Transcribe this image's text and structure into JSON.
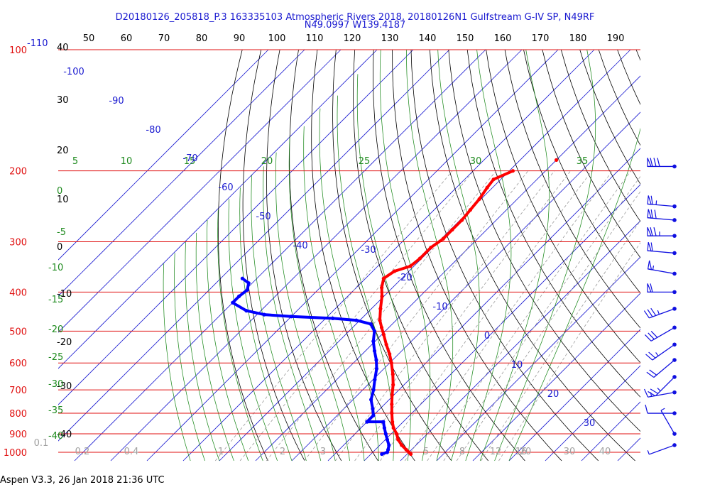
{
  "header": {
    "line1": "D20180126_205818_P.3 163335103 Atmospheric Rivers 2018, 20180126N1 Gulfstream G-IV SP, N49RF",
    "line2": "N49.0997 W139.4187"
  },
  "footer": {
    "text": "Aspen V3.3, 26 Jan 2018  21:36 UTC"
  },
  "colors": {
    "isobar": "#e01010",
    "isotherm": "#1a1ad0",
    "dry_adiabat": "#000000",
    "moist_adiabat": "#1e8a1e",
    "mixing_ratio": "#9a9a9a",
    "temperature": "#ff0000",
    "dewpoint": "#0000ff",
    "wind_barb": "#1010e0"
  },
  "chart_data": {
    "type": "skew-t",
    "pressure_levels": [
      "100",
      "200",
      "300",
      "400",
      "500",
      "600",
      "700",
      "800",
      "900",
      "1000"
    ],
    "top_ticks": [
      "50",
      "60",
      "70",
      "80",
      "90",
      "100",
      "110",
      "120",
      "130",
      "140",
      "150",
      "160",
      "170",
      "180",
      "190"
    ],
    "corner_label_blue": "-110",
    "isotherm_labels": [
      "-100",
      "-90",
      "-80",
      "-70",
      "-60",
      "-50",
      "-40",
      "-30",
      "-20",
      "-10",
      "0",
      "10",
      "20",
      "30"
    ],
    "dry_adiabat_labels": [
      "40",
      "30",
      "20",
      "10",
      "0",
      "-10",
      "-20",
      "-30",
      "-40"
    ],
    "theta_e_labels_top": [
      "5",
      "10",
      "15",
      "20",
      "25",
      "30",
      "35"
    ],
    "theta_e_labels_left": [
      "0",
      "-5",
      "-10",
      "-15",
      "-20",
      "-25",
      "-30",
      "-35",
      "-40"
    ],
    "mixing_ratio_labels": [
      "0.1",
      "0.2",
      "0.4",
      "1",
      "2",
      "3",
      "5",
      "8",
      "12",
      "16",
      "20",
      "30",
      "40"
    ],
    "temperature_profile": [
      {
        "p": 1010,
        "t": 11.0
      },
      {
        "p": 1000,
        "t": 10.0
      },
      {
        "p": 985,
        "t": 8.5
      },
      {
        "p": 960,
        "t": 6.0
      },
      {
        "p": 930,
        "t": 3.5
      },
      {
        "p": 900,
        "t": 1.5
      },
      {
        "p": 870,
        "t": -1.0
      },
      {
        "p": 840,
        "t": -3.0
      },
      {
        "p": 800,
        "t": -5.5
      },
      {
        "p": 760,
        "t": -8.0
      },
      {
        "p": 720,
        "t": -10.5
      },
      {
        "p": 680,
        "t": -13.0
      },
      {
        "p": 640,
        "t": -16.0
      },
      {
        "p": 600,
        "t": -19.5
      },
      {
        "p": 570,
        "t": -22.5
      },
      {
        "p": 540,
        "t": -26.0
      },
      {
        "p": 510,
        "t": -29.5
      },
      {
        "p": 490,
        "t": -32.0
      },
      {
        "p": 470,
        "t": -34.5
      },
      {
        "p": 440,
        "t": -37.5
      },
      {
        "p": 410,
        "t": -40.5
      },
      {
        "p": 390,
        "t": -43.0
      },
      {
        "p": 370,
        "t": -45.0
      },
      {
        "p": 355,
        "t": -44.0
      },
      {
        "p": 345,
        "t": -41.0
      },
      {
        "p": 330,
        "t": -40.5
      },
      {
        "p": 310,
        "t": -40.5
      },
      {
        "p": 295,
        "t": -39.5
      },
      {
        "p": 280,
        "t": -39.5
      },
      {
        "p": 265,
        "t": -39.5
      },
      {
        "p": 250,
        "t": -40.0
      },
      {
        "p": 235,
        "t": -40.5
      },
      {
        "p": 220,
        "t": -41.5
      },
      {
        "p": 210,
        "t": -42.0
      },
      {
        "p": 200,
        "t": -39.0
      }
    ],
    "dewpoint_profile": [
      {
        "p": 1010,
        "t": 3.0
      },
      {
        "p": 1000,
        "t": 4.0
      },
      {
        "p": 985,
        "t": 3.5
      },
      {
        "p": 960,
        "t": 2.5
      },
      {
        "p": 930,
        "t": 0.5
      },
      {
        "p": 900,
        "t": -1.5
      },
      {
        "p": 870,
        "t": -3.5
      },
      {
        "p": 840,
        "t": -5.5
      },
      {
        "p": 840,
        "t": -10.0
      },
      {
        "p": 810,
        "t": -10.0
      },
      {
        "p": 780,
        "t": -12.0
      },
      {
        "p": 740,
        "t": -15.0
      },
      {
        "p": 700,
        "t": -17.0
      },
      {
        "p": 660,
        "t": -19.5
      },
      {
        "p": 620,
        "t": -22.0
      },
      {
        "p": 590,
        "t": -24.5
      },
      {
        "p": 560,
        "t": -27.5
      },
      {
        "p": 530,
        "t": -30.5
      },
      {
        "p": 500,
        "t": -33.0
      },
      {
        "p": 480,
        "t": -36.0
      },
      {
        "p": 470,
        "t": -41.0
      },
      {
        "p": 465,
        "t": -48.0
      },
      {
        "p": 460,
        "t": -60.0
      },
      {
        "p": 455,
        "t": -68.0
      },
      {
        "p": 445,
        "t": -74.0
      },
      {
        "p": 425,
        "t": -80.0
      },
      {
        "p": 410,
        "t": -80.0
      },
      {
        "p": 395,
        "t": -79.5
      },
      {
        "p": 380,
        "t": -81.0
      },
      {
        "p": 370,
        "t": -84.0
      }
    ],
    "stray_temperature_point": {
      "p": 188,
      "t": -30.0
    },
    "wind_barbs": [
      {
        "p": 195,
        "dir": 270,
        "kt": 80
      },
      {
        "p": 245,
        "dir": 275,
        "kt": 65
      },
      {
        "p": 265,
        "dir": 275,
        "kt": 70
      },
      {
        "p": 290,
        "dir": 270,
        "kt": 75
      },
      {
        "p": 320,
        "dir": 275,
        "kt": 60
      },
      {
        "p": 360,
        "dir": 280,
        "kt": 55
      },
      {
        "p": 400,
        "dir": 270,
        "kt": 60
      },
      {
        "p": 440,
        "dir": 250,
        "kt": 35
      },
      {
        "p": 490,
        "dir": 240,
        "kt": 30
      },
      {
        "p": 540,
        "dir": 235,
        "kt": 25
      },
      {
        "p": 590,
        "dir": 230,
        "kt": 20
      },
      {
        "p": 650,
        "dir": 225,
        "kt": 25
      },
      {
        "p": 710,
        "dir": 260,
        "kt": 15
      },
      {
        "p": 800,
        "dir": 270,
        "kt": 10
      },
      {
        "p": 900,
        "dir": 330,
        "kt": 5
      },
      {
        "p": 960,
        "dir": 250,
        "kt": 5
      }
    ],
    "axes": {
      "p_top": 100,
      "p_bottom": 1050,
      "y_scale": "log"
    },
    "grid": true
  }
}
